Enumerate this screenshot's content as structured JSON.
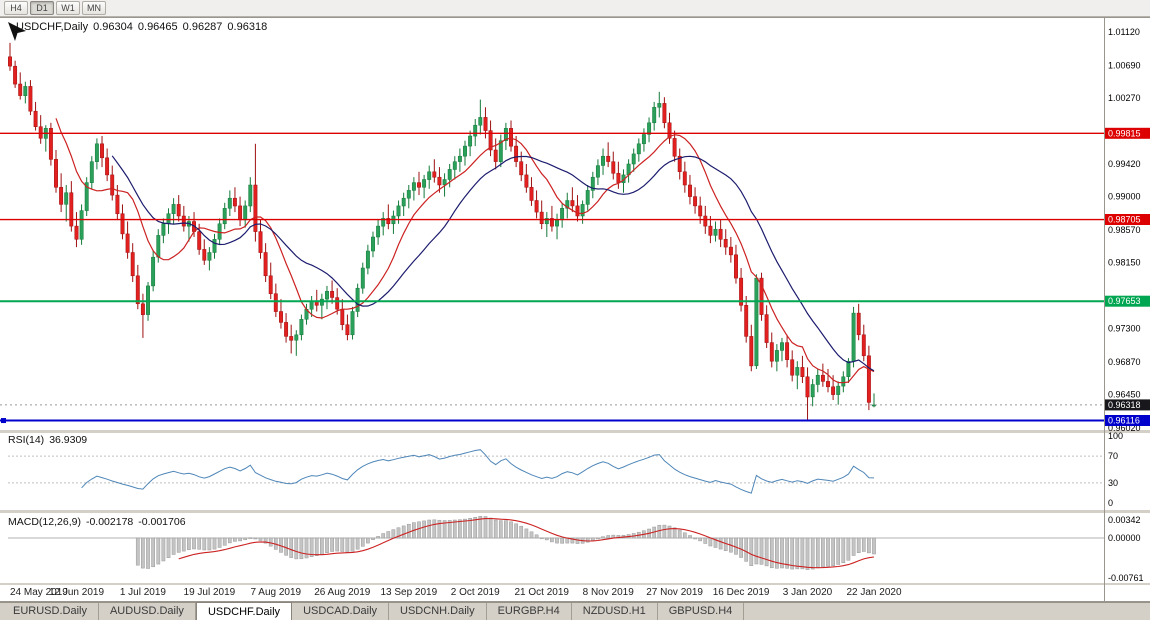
{
  "toolbar": {
    "active_index": 1,
    "timeframes": [
      {
        "label": "H4"
      },
      {
        "label": "D1"
      },
      {
        "label": "W1"
      },
      {
        "label": "MN"
      }
    ]
  },
  "chart_header": {
    "symbol": "USDCHF,Daily",
    "open": "0.96304",
    "high": "0.96465",
    "low": "0.96287",
    "close": "0.96318"
  },
  "indicators": {
    "rsi": {
      "label": "RSI(14)",
      "value": "36.9309",
      "period": 14,
      "levels": [
        100,
        70,
        30,
        0
      ]
    },
    "macd": {
      "label": "MACD(12,26,9)",
      "value_main": "-0.002178",
      "value_signal": "-0.001706",
      "fast": 12,
      "slow": 26,
      "signal": 9,
      "axis": [
        0.00342,
        0.0,
        -0.00761
      ]
    }
  },
  "colors": {
    "bull": "#2aa05a",
    "bull_stroke": "#147a3a",
    "bear": "#e32020",
    "bear_stroke": "#9e1010",
    "ma_fast": "#cc2222",
    "ma_slow": "#1c1c6e",
    "rsi": "#4e86b8",
    "macd_hist": "#c4c4c4",
    "macd_hist_stroke": "#9a9a9a",
    "macd_signal": "#cc2222"
  },
  "chart_data": {
    "type": "candlestick",
    "symbol": "USDCHF",
    "timeframe": "Daily",
    "y_axis_labels": [
      1.0112,
      1.0069,
      1.0027,
      0.9984,
      0.9942,
      0.99,
      0.9857,
      0.9815,
      0.9773,
      0.973,
      0.9687,
      0.9645,
      0.9602
    ],
    "x_labels": [
      "24 May 2019",
      "12 Jun 2019",
      "1 Jul 2019",
      "19 Jul 2019",
      "7 Aug 2019",
      "26 Aug 2019",
      "13 Sep 2019",
      "2 Oct 2019",
      "21 Oct 2019",
      "8 Nov 2019",
      "27 Nov 2019",
      "16 Dec 2019",
      "3 Jan 2020",
      "22 Jan 2020"
    ],
    "levels": [
      {
        "value": 0.99815,
        "color": "#dd0000",
        "width": 1.4,
        "type": "resistance"
      },
      {
        "value": 0.98705,
        "color": "#dd0000",
        "width": 1.4,
        "type": "resistance"
      },
      {
        "value": 0.97653,
        "color": "#00a651",
        "width": 2,
        "type": "support"
      },
      {
        "value": 0.96116,
        "color": "#0000cc",
        "width": 2,
        "type": "support"
      }
    ],
    "current_price": {
      "value": 0.96318,
      "color": "#17171c"
    },
    "candles": [
      [
        1.008,
        1.0098,
        1.0062,
        1.0068
      ],
      [
        1.0068,
        1.0075,
        1.004,
        1.0045
      ],
      [
        1.0045,
        1.006,
        1.0025,
        1.003
      ],
      [
        1.003,
        1.0048,
        1.002,
        1.0042
      ],
      [
        1.0042,
        1.005,
        1.0005,
        1.001
      ],
      [
        1.001,
        1.0022,
        0.9985,
        0.999
      ],
      [
        0.999,
        1.0005,
        0.9968,
        0.9975
      ],
      [
        0.9975,
        0.9992,
        0.9958,
        0.9988
      ],
      [
        0.9988,
        0.9995,
        0.994,
        0.9948
      ],
      [
        0.9948,
        0.996,
        0.9905,
        0.9912
      ],
      [
        0.9912,
        0.993,
        0.988,
        0.989
      ],
      [
        0.989,
        0.9915,
        0.9868,
        0.9905
      ],
      [
        0.9905,
        0.992,
        0.9855,
        0.9862
      ],
      [
        0.9862,
        0.988,
        0.9835,
        0.9845
      ],
      [
        0.9845,
        0.989,
        0.9838,
        0.9882
      ],
      [
        0.9882,
        0.9925,
        0.9875,
        0.9918
      ],
      [
        0.9918,
        0.9952,
        0.991,
        0.9945
      ],
      [
        0.9945,
        0.9975,
        0.9935,
        0.9968
      ],
      [
        0.9968,
        0.9978,
        0.9938,
        0.995
      ],
      [
        0.995,
        0.9962,
        0.992,
        0.9928
      ],
      [
        0.9928,
        0.994,
        0.9895,
        0.9902
      ],
      [
        0.9902,
        0.9915,
        0.987,
        0.9878
      ],
      [
        0.9878,
        0.989,
        0.9845,
        0.9852
      ],
      [
        0.9852,
        0.9868,
        0.982,
        0.9828
      ],
      [
        0.9828,
        0.984,
        0.979,
        0.9798
      ],
      [
        0.9798,
        0.9812,
        0.9755,
        0.9762
      ],
      [
        0.9762,
        0.9775,
        0.9718,
        0.9748
      ],
      [
        0.9748,
        0.979,
        0.974,
        0.9785
      ],
      [
        0.9785,
        0.983,
        0.9778,
        0.9822
      ],
      [
        0.9822,
        0.9858,
        0.9815,
        0.985
      ],
      [
        0.985,
        0.9872,
        0.984,
        0.9865
      ],
      [
        0.9865,
        0.9885,
        0.9852,
        0.9878
      ],
      [
        0.9878,
        0.9898,
        0.9865,
        0.989
      ],
      [
        0.989,
        0.9902,
        0.9868,
        0.9875
      ],
      [
        0.9875,
        0.9888,
        0.9855,
        0.9862
      ],
      [
        0.9862,
        0.9875,
        0.9842,
        0.9868
      ],
      [
        0.9868,
        0.988,
        0.9848,
        0.9855
      ],
      [
        0.9855,
        0.9865,
        0.9825,
        0.9832
      ],
      [
        0.9832,
        0.9845,
        0.9812,
        0.9818
      ],
      [
        0.9818,
        0.9835,
        0.9805,
        0.9828
      ],
      [
        0.9828,
        0.9852,
        0.982,
        0.9845
      ],
      [
        0.9845,
        0.9872,
        0.9838,
        0.9865
      ],
      [
        0.9865,
        0.9892,
        0.9858,
        0.9885
      ],
      [
        0.9885,
        0.9908,
        0.9875,
        0.9898
      ],
      [
        0.9898,
        0.9912,
        0.988,
        0.9888
      ],
      [
        0.9888,
        0.99,
        0.9862,
        0.987
      ],
      [
        0.987,
        0.9895,
        0.986,
        0.9888
      ],
      [
        0.9888,
        0.9925,
        0.988,
        0.9915
      ],
      [
        0.9915,
        0.9968,
        0.9842,
        0.9855
      ],
      [
        0.9855,
        0.987,
        0.982,
        0.9828
      ],
      [
        0.9828,
        0.984,
        0.979,
        0.9798
      ],
      [
        0.9798,
        0.9815,
        0.9768,
        0.9775
      ],
      [
        0.9775,
        0.9788,
        0.9745,
        0.9752
      ],
      [
        0.9752,
        0.9768,
        0.973,
        0.9738
      ],
      [
        0.9738,
        0.975,
        0.9712,
        0.972
      ],
      [
        0.972,
        0.9735,
        0.9698,
        0.9715
      ],
      [
        0.9715,
        0.9728,
        0.9695,
        0.9722
      ],
      [
        0.9722,
        0.9748,
        0.9715,
        0.9742
      ],
      [
        0.9742,
        0.9762,
        0.9735,
        0.9755
      ],
      [
        0.9755,
        0.9772,
        0.9745,
        0.9765
      ],
      [
        0.9765,
        0.978,
        0.9752,
        0.976
      ],
      [
        0.976,
        0.9775,
        0.9742,
        0.9768
      ],
      [
        0.9768,
        0.9785,
        0.9755,
        0.9778
      ],
      [
        0.9778,
        0.9792,
        0.9762,
        0.977
      ],
      [
        0.977,
        0.9782,
        0.9748,
        0.9755
      ],
      [
        0.9755,
        0.9768,
        0.9728,
        0.9735
      ],
      [
        0.9735,
        0.9748,
        0.9715,
        0.9722
      ],
      [
        0.9722,
        0.9758,
        0.9716,
        0.9752
      ],
      [
        0.9752,
        0.9788,
        0.9745,
        0.9782
      ],
      [
        0.9782,
        0.9815,
        0.9775,
        0.9808
      ],
      [
        0.9808,
        0.9838,
        0.98,
        0.983
      ],
      [
        0.983,
        0.9855,
        0.9822,
        0.9848
      ],
      [
        0.9848,
        0.987,
        0.9838,
        0.9862
      ],
      [
        0.9862,
        0.988,
        0.985,
        0.9872
      ],
      [
        0.9872,
        0.989,
        0.9858,
        0.9865
      ],
      [
        0.9865,
        0.9882,
        0.9852,
        0.9875
      ],
      [
        0.9875,
        0.9895,
        0.9865,
        0.9888
      ],
      [
        0.9888,
        0.9905,
        0.9875,
        0.9898
      ],
      [
        0.9898,
        0.9915,
        0.9885,
        0.9908
      ],
      [
        0.9908,
        0.9925,
        0.9895,
        0.9918
      ],
      [
        0.9918,
        0.9932,
        0.9902,
        0.9912
      ],
      [
        0.9912,
        0.9928,
        0.9898,
        0.9922
      ],
      [
        0.9922,
        0.994,
        0.991,
        0.9932
      ],
      [
        0.9932,
        0.9948,
        0.9918,
        0.9925
      ],
      [
        0.9925,
        0.9938,
        0.9905,
        0.9915
      ],
      [
        0.9915,
        0.993,
        0.99,
        0.9922
      ],
      [
        0.9922,
        0.9942,
        0.9912,
        0.9935
      ],
      [
        0.9935,
        0.9952,
        0.9922,
        0.9945
      ],
      [
        0.9945,
        0.9962,
        0.9932,
        0.9952
      ],
      [
        0.9952,
        0.9972,
        0.994,
        0.9965
      ],
      [
        0.9965,
        0.9985,
        0.9952,
        0.9978
      ],
      [
        0.9978,
        1.0,
        0.9965,
        0.9992
      ],
      [
        0.9992,
        1.0025,
        0.998,
        1.0002
      ],
      [
        1.0002,
        1.0015,
        0.9975,
        0.9985
      ],
      [
        0.9985,
        0.9998,
        0.9952,
        0.996
      ],
      [
        0.996,
        0.9975,
        0.9935,
        0.9945
      ],
      [
        0.9945,
        0.998,
        0.9938,
        0.9972
      ],
      [
        0.9972,
        0.9995,
        0.996,
        0.9988
      ],
      [
        0.9988,
        0.9998,
        0.9958,
        0.9965
      ],
      [
        0.9965,
        0.9978,
        0.9938,
        0.9945
      ],
      [
        0.9945,
        0.9958,
        0.992,
        0.9928
      ],
      [
        0.9928,
        0.9942,
        0.9905,
        0.9912
      ],
      [
        0.9912,
        0.9925,
        0.9888,
        0.9895
      ],
      [
        0.9895,
        0.9908,
        0.9872,
        0.988
      ],
      [
        0.988,
        0.9895,
        0.9858,
        0.9865
      ],
      [
        0.9865,
        0.988,
        0.9848,
        0.9872
      ],
      [
        0.9872,
        0.9888,
        0.9855,
        0.9862
      ],
      [
        0.9862,
        0.9878,
        0.9845,
        0.987
      ],
      [
        0.987,
        0.9892,
        0.986,
        0.9885
      ],
      [
        0.9885,
        0.9905,
        0.9872,
        0.9895
      ],
      [
        0.9895,
        0.9912,
        0.988,
        0.9888
      ],
      [
        0.9888,
        0.9902,
        0.9868,
        0.9875
      ],
      [
        0.9875,
        0.9895,
        0.9865,
        0.989
      ],
      [
        0.989,
        0.9915,
        0.9882,
        0.9908
      ],
      [
        0.9908,
        0.9932,
        0.9898,
        0.9925
      ],
      [
        0.9925,
        0.9948,
        0.9915,
        0.994
      ],
      [
        0.994,
        0.9962,
        0.9928,
        0.9952
      ],
      [
        0.9952,
        0.997,
        0.9938,
        0.9945
      ],
      [
        0.9945,
        0.9958,
        0.9922,
        0.993
      ],
      [
        0.993,
        0.9945,
        0.991,
        0.9918
      ],
      [
        0.9918,
        0.9935,
        0.9905,
        0.9928
      ],
      [
        0.9928,
        0.9948,
        0.9918,
        0.9942
      ],
      [
        0.9942,
        0.9962,
        0.9932,
        0.9955
      ],
      [
        0.9955,
        0.9975,
        0.9945,
        0.9968
      ],
      [
        0.9968,
        0.9988,
        0.9958,
        0.998
      ],
      [
        0.998,
        1.0002,
        0.997,
        0.9995
      ],
      [
        0.9995,
        1.0022,
        0.9985,
        1.0015
      ],
      [
        1.0015,
        1.0035,
        1.0002,
        1.002
      ],
      [
        1.002,
        1.0028,
        0.9988,
        0.9995
      ],
      [
        0.9995,
        1.0008,
        0.9968,
        0.9975
      ],
      [
        0.9975,
        0.9985,
        0.9945,
        0.9952
      ],
      [
        0.9952,
        0.9962,
        0.9922,
        0.9932
      ],
      [
        0.9932,
        0.9945,
        0.9905,
        0.9915
      ],
      [
        0.9915,
        0.9928,
        0.989,
        0.99
      ],
      [
        0.99,
        0.9912,
        0.9878,
        0.9888
      ],
      [
        0.9888,
        0.99,
        0.9865,
        0.9875
      ],
      [
        0.9875,
        0.9888,
        0.9852,
        0.9862
      ],
      [
        0.9862,
        0.9875,
        0.984,
        0.985
      ],
      [
        0.985,
        0.9868,
        0.9842,
        0.9858
      ],
      [
        0.9858,
        0.987,
        0.9835,
        0.9845
      ],
      [
        0.9845,
        0.9858,
        0.9825,
        0.9835
      ],
      [
        0.9835,
        0.9848,
        0.9815,
        0.9825
      ],
      [
        0.9825,
        0.9838,
        0.9788,
        0.9795
      ],
      [
        0.9795,
        0.9808,
        0.9752,
        0.976
      ],
      [
        0.976,
        0.9772,
        0.9712,
        0.972
      ],
      [
        0.972,
        0.9735,
        0.9675,
        0.9682
      ],
      [
        0.9682,
        0.98,
        0.9678,
        0.9795
      ],
      [
        0.9795,
        0.9802,
        0.974,
        0.9748
      ],
      [
        0.9748,
        0.976,
        0.9705,
        0.9712
      ],
      [
        0.9712,
        0.9725,
        0.968,
        0.9688
      ],
      [
        0.9688,
        0.971,
        0.9675,
        0.9702
      ],
      [
        0.9702,
        0.9718,
        0.9688,
        0.9712
      ],
      [
        0.9712,
        0.9722,
        0.968,
        0.969
      ],
      [
        0.969,
        0.9702,
        0.9662,
        0.967
      ],
      [
        0.967,
        0.9688,
        0.9652,
        0.968
      ],
      [
        0.968,
        0.9695,
        0.966,
        0.9668
      ],
      [
        0.9668,
        0.968,
        0.9613,
        0.9642
      ],
      [
        0.9642,
        0.9665,
        0.963,
        0.9658
      ],
      [
        0.9658,
        0.9678,
        0.9648,
        0.967
      ],
      [
        0.967,
        0.9685,
        0.9655,
        0.9662
      ],
      [
        0.9662,
        0.9678,
        0.9648,
        0.9655
      ],
      [
        0.9655,
        0.967,
        0.9638,
        0.9645
      ],
      [
        0.9645,
        0.9662,
        0.9632,
        0.9656
      ],
      [
        0.9656,
        0.9675,
        0.9648,
        0.9668
      ],
      [
        0.9668,
        0.9692,
        0.966,
        0.9688
      ],
      [
        0.9688,
        0.9758,
        0.968,
        0.975
      ],
      [
        0.975,
        0.9762,
        0.9715,
        0.9722
      ],
      [
        0.9722,
        0.9735,
        0.9688,
        0.9695
      ],
      [
        0.9695,
        0.9708,
        0.9625,
        0.9635
      ],
      [
        0.96304,
        0.96465,
        0.96287,
        0.96318
      ]
    ]
  },
  "tabs": {
    "active_index": 2,
    "items": [
      {
        "label": "EURUSD.Daily"
      },
      {
        "label": "AUDUSD.Daily"
      },
      {
        "label": "USDCHF.Daily"
      },
      {
        "label": "USDCAD.Daily"
      },
      {
        "label": "USDCNH.Daily"
      },
      {
        "label": "EURGBP.H4"
      },
      {
        "label": "NZDUSD.H1"
      },
      {
        "label": "GBPUSD.H4"
      }
    ]
  }
}
